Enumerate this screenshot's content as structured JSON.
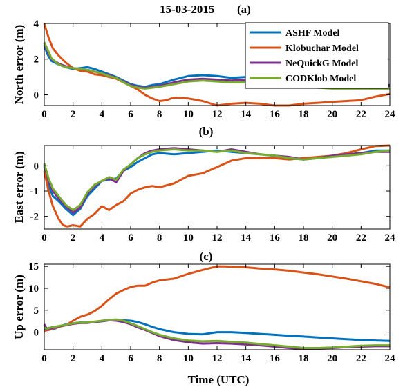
{
  "figure": {
    "title": "15-03-2015",
    "xlabel": "Time (UTC)"
  },
  "legend": [
    "ASHF Model",
    "Klobuchar Model",
    "NeQuickG Model",
    "CODKlob Model"
  ],
  "colors": {
    "ASHF Model": "#0072bd",
    "Klobuchar Model": "#d95319",
    "NeQuickG Model": "#7e2f8e",
    "CODKlob Model": "#77ac30"
  },
  "chart_data": [
    {
      "type": "line",
      "panel": "(a)",
      "ylabel": "North error (m)",
      "xlim": [
        0,
        24
      ],
      "ylim": [
        -0.6,
        4
      ],
      "xticks": [
        0,
        2,
        4,
        6,
        8,
        10,
        12,
        14,
        16,
        18,
        20,
        22,
        24
      ],
      "yticks": [
        0,
        2,
        4
      ],
      "legend_position": "top-right",
      "series": [
        {
          "name": "ASHF Model",
          "x": [
            0,
            0.2,
            0.5,
            1,
            1.5,
            2,
            2.5,
            3,
            3.5,
            4,
            4.5,
            5,
            5.5,
            6,
            6.5,
            7,
            7.5,
            8,
            9,
            10,
            11,
            12,
            13,
            14,
            15,
            16,
            17,
            18,
            19,
            20,
            21,
            22,
            23,
            24
          ],
          "y": [
            2.8,
            2.3,
            1.9,
            1.7,
            1.55,
            1.45,
            1.5,
            1.55,
            1.45,
            1.3,
            1.15,
            1.0,
            0.8,
            0.6,
            0.5,
            0.45,
            0.55,
            0.6,
            0.85,
            1.05,
            1.1,
            1.05,
            0.95,
            1.0,
            0.9,
            0.95,
            0.9,
            0.8,
            0.7,
            0.6,
            0.55,
            0.55,
            0.55,
            0.55
          ]
        },
        {
          "name": "Klobuchar Model",
          "x": [
            0,
            0.3,
            0.6,
            1,
            1.5,
            2,
            2.5,
            3,
            3.5,
            4,
            4.5,
            5,
            5.5,
            6,
            6.5,
            7,
            7.5,
            8,
            8.5,
            9,
            10,
            11,
            12,
            13,
            14,
            15,
            16,
            17,
            18,
            19,
            20,
            21,
            22,
            23,
            24
          ],
          "y": [
            4.0,
            3.2,
            2.6,
            2.2,
            1.8,
            1.5,
            1.35,
            1.3,
            1.15,
            1.1,
            1.0,
            0.9,
            0.7,
            0.5,
            0.3,
            0.0,
            -0.2,
            -0.35,
            -0.3,
            -0.15,
            -0.2,
            -0.35,
            -0.6,
            -0.5,
            -0.45,
            -0.5,
            -0.6,
            -0.6,
            -0.5,
            -0.45,
            -0.4,
            -0.35,
            -0.3,
            -0.1,
            0.05
          ]
        },
        {
          "name": "NeQuickG Model",
          "x": [
            0,
            0.2,
            0.5,
            1,
            1.5,
            2,
            2.5,
            3,
            3.5,
            4,
            4.5,
            5,
            5.5,
            6,
            6.5,
            7,
            7.5,
            8,
            9,
            10,
            11,
            12,
            13,
            14,
            15,
            16,
            17,
            18,
            19,
            20,
            21,
            22,
            23,
            24
          ],
          "y": [
            2.9,
            2.5,
            2.0,
            1.75,
            1.6,
            1.5,
            1.45,
            1.4,
            1.3,
            1.2,
            1.1,
            0.95,
            0.75,
            0.55,
            0.45,
            0.4,
            0.45,
            0.5,
            0.7,
            0.85,
            0.9,
            0.85,
            0.8,
            0.85,
            0.8,
            0.8,
            0.75,
            0.65,
            0.6,
            0.55,
            0.5,
            0.5,
            0.5,
            0.5
          ]
        },
        {
          "name": "CODKlob Model",
          "x": [
            0,
            0.2,
            0.5,
            1,
            1.5,
            2,
            2.5,
            3,
            3.5,
            4,
            4.5,
            5,
            5.5,
            6,
            6.5,
            7,
            7.5,
            8,
            9,
            10,
            11,
            12,
            13,
            14,
            15,
            16,
            17,
            18,
            19,
            20,
            21,
            22,
            23,
            24
          ],
          "y": [
            2.95,
            2.6,
            2.05,
            1.7,
            1.55,
            1.5,
            1.45,
            1.4,
            1.3,
            1.2,
            1.05,
            0.95,
            0.7,
            0.5,
            0.4,
            0.35,
            0.4,
            0.45,
            0.6,
            0.75,
            0.8,
            0.75,
            0.7,
            0.7,
            0.65,
            0.6,
            0.55,
            0.45,
            0.4,
            0.35,
            0.35,
            0.35,
            0.35,
            0.35
          ]
        }
      ]
    },
    {
      "type": "line",
      "panel": "(b)",
      "ylabel": "East  error (m)",
      "xlim": [
        0,
        24
      ],
      "ylim": [
        -2.5,
        0.8
      ],
      "xticks": [
        0,
        2,
        4,
        6,
        8,
        10,
        12,
        14,
        16,
        18,
        20,
        22,
        24
      ],
      "yticks": [
        -2,
        -1,
        0
      ],
      "series": [
        {
          "name": "ASHF Model",
          "x": [
            0,
            0.3,
            0.6,
            1,
            1.5,
            2,
            2.5,
            3,
            3.5,
            4,
            4.5,
            5,
            5.5,
            6,
            6.5,
            7,
            7.5,
            8,
            9,
            10,
            11,
            12,
            13,
            14,
            15,
            16,
            17,
            18,
            19,
            20,
            21,
            22,
            23,
            24
          ],
          "y": [
            0.0,
            -0.8,
            -1.2,
            -1.4,
            -1.7,
            -1.95,
            -1.7,
            -1.2,
            -0.9,
            -0.6,
            -0.55,
            -0.5,
            -0.2,
            -0.05,
            0.15,
            0.3,
            0.45,
            0.5,
            0.45,
            0.5,
            0.55,
            0.6,
            0.55,
            0.5,
            0.45,
            0.4,
            0.3,
            0.25,
            0.3,
            0.4,
            0.45,
            0.5,
            0.6,
            0.6
          ]
        },
        {
          "name": "Klobuchar Model",
          "x": [
            0,
            0.3,
            0.6,
            1,
            1.3,
            1.6,
            2,
            2.5,
            3,
            3.5,
            4,
            4.5,
            5,
            5.5,
            6,
            6.5,
            7,
            7.5,
            8,
            9,
            10,
            11,
            12,
            13,
            14,
            15,
            16,
            17,
            18,
            19,
            20,
            21,
            22,
            23,
            24
          ],
          "y": [
            -0.2,
            -1.0,
            -1.6,
            -2.1,
            -2.35,
            -2.4,
            -2.35,
            -2.4,
            -2.1,
            -1.9,
            -1.6,
            -1.75,
            -1.55,
            -1.4,
            -1.1,
            -0.95,
            -0.85,
            -0.8,
            -0.85,
            -0.7,
            -0.4,
            -0.3,
            -0.05,
            0.2,
            0.3,
            0.3,
            0.3,
            0.25,
            0.3,
            0.35,
            0.4,
            0.5,
            0.65,
            0.78,
            0.8
          ]
        },
        {
          "name": "NeQuickG Model",
          "x": [
            0,
            0.3,
            0.6,
            1,
            1.5,
            2,
            2.5,
            3,
            3.5,
            4,
            4.5,
            5,
            5.5,
            6,
            6.5,
            7,
            7.5,
            8,
            9,
            10,
            11,
            12,
            13,
            14,
            15,
            16,
            17,
            18,
            19,
            20,
            21,
            22,
            23,
            24
          ],
          "y": [
            0.05,
            -0.6,
            -1.0,
            -1.3,
            -1.6,
            -1.85,
            -1.65,
            -1.1,
            -0.8,
            -0.6,
            -0.5,
            -0.65,
            -0.2,
            0.05,
            0.3,
            0.5,
            0.6,
            0.65,
            0.7,
            0.65,
            0.6,
            0.55,
            0.65,
            0.55,
            0.45,
            0.4,
            0.35,
            0.25,
            0.3,
            0.4,
            0.45,
            0.5,
            0.55,
            0.55
          ]
        },
        {
          "name": "CODKlob Model",
          "x": [
            0,
            0.3,
            0.6,
            1,
            1.5,
            2,
            2.5,
            3,
            3.5,
            4,
            4.5,
            5,
            5.5,
            6,
            6.5,
            7,
            7.5,
            8,
            9,
            10,
            11,
            12,
            13,
            14,
            15,
            16,
            17,
            18,
            19,
            20,
            21,
            22,
            23,
            24
          ],
          "y": [
            0.1,
            -0.5,
            -0.9,
            -1.2,
            -1.55,
            -1.75,
            -1.55,
            -1.05,
            -0.75,
            -0.6,
            -0.45,
            -0.55,
            -0.15,
            0.05,
            0.3,
            0.45,
            0.55,
            0.6,
            0.65,
            0.6,
            0.6,
            0.55,
            0.6,
            0.5,
            0.45,
            0.4,
            0.3,
            0.25,
            0.3,
            0.35,
            0.4,
            0.45,
            0.55,
            0.6
          ]
        }
      ]
    },
    {
      "type": "line",
      "panel": "(c)",
      "ylabel": "Up error (m)",
      "xlim": [
        0,
        24
      ],
      "ylim": [
        -4,
        15.5
      ],
      "xticks": [
        0,
        2,
        4,
        6,
        8,
        10,
        12,
        14,
        16,
        18,
        20,
        22,
        24
      ],
      "yticks": [
        0,
        5,
        10,
        15
      ],
      "series": [
        {
          "name": "ASHF Model",
          "x": [
            0,
            0.3,
            0.6,
            1,
            1.5,
            2,
            2.5,
            3,
            3.5,
            4,
            4.5,
            5,
            5.5,
            6,
            6.5,
            7,
            7.5,
            8,
            9,
            10,
            11,
            12,
            13,
            14,
            15,
            16,
            17,
            18,
            19,
            20,
            21,
            22,
            23,
            24
          ],
          "y": [
            0.5,
            1.0,
            0.6,
            1.2,
            1.8,
            2.0,
            2.2,
            2.2,
            2.3,
            2.5,
            2.7,
            2.8,
            2.7,
            2.6,
            2.3,
            1.8,
            1.2,
            0.7,
            0.0,
            -0.4,
            -0.5,
            0.0,
            0.0,
            -0.2,
            -0.4,
            -0.6,
            -0.8,
            -1.0,
            -1.2,
            -1.4,
            -1.6,
            -1.8,
            -1.9,
            -2.0
          ]
        },
        {
          "name": "Klobuchar Model",
          "x": [
            0,
            0.3,
            0.6,
            1,
            1.5,
            2,
            2.5,
            3,
            3.5,
            4,
            4.5,
            5,
            5.5,
            6,
            6.5,
            7,
            7.5,
            8,
            9,
            10,
            11,
            12,
            12.5,
            13,
            14,
            15,
            16,
            17,
            18,
            19,
            20,
            21,
            22,
            23,
            24
          ],
          "y": [
            0.3,
            0.5,
            0.8,
            1.2,
            1.6,
            2.6,
            3.5,
            4.0,
            4.8,
            6.0,
            7.5,
            8.8,
            9.6,
            10.3,
            10.6,
            10.6,
            11.3,
            11.8,
            12.2,
            13.3,
            14.2,
            15.0,
            15.0,
            14.9,
            14.8,
            14.5,
            14.3,
            14.0,
            13.6,
            13.2,
            12.7,
            12.2,
            11.6,
            11.0,
            10.2
          ]
        },
        {
          "name": "NeQuickG Model",
          "x": [
            0,
            0.2,
            0.5,
            1,
            1.5,
            2,
            2.5,
            3,
            3.5,
            4,
            4.5,
            5,
            5.5,
            6,
            6.5,
            7,
            7.5,
            8,
            9,
            10,
            11,
            12,
            13,
            14,
            15,
            16,
            17,
            18,
            19,
            20,
            21,
            22,
            23,
            24
          ],
          "y": [
            1.8,
            0.6,
            0.9,
            1.3,
            1.6,
            1.9,
            2.1,
            2.1,
            2.3,
            2.5,
            2.7,
            2.6,
            2.3,
            1.8,
            1.1,
            0.5,
            -0.2,
            -0.9,
            -1.8,
            -2.3,
            -2.6,
            -2.5,
            -2.6,
            -2.8,
            -3.0,
            -3.3,
            -3.6,
            -3.8,
            -3.7,
            -3.6,
            -3.4,
            -3.3,
            -3.2,
            -3.2
          ]
        },
        {
          "name": "CODKlob Model",
          "x": [
            0,
            0.2,
            0.5,
            1,
            1.5,
            2,
            2.5,
            3,
            3.5,
            4,
            4.5,
            5,
            5.5,
            6,
            6.5,
            7,
            7.5,
            8,
            9,
            10,
            11,
            12,
            13,
            14,
            15,
            16,
            17,
            18,
            19,
            20,
            21,
            22,
            23,
            24
          ],
          "y": [
            1.0,
            0.8,
            1.1,
            1.4,
            1.7,
            2.0,
            2.2,
            2.2,
            2.4,
            2.6,
            2.8,
            2.9,
            2.6,
            2.0,
            1.4,
            0.7,
            0.0,
            -0.6,
            -1.4,
            -1.9,
            -2.1,
            -2.0,
            -2.2,
            -2.4,
            -2.7,
            -3.0,
            -3.3,
            -3.6,
            -3.6,
            -3.5,
            -3.3,
            -3.1,
            -3.0,
            -3.0
          ]
        }
      ]
    }
  ]
}
